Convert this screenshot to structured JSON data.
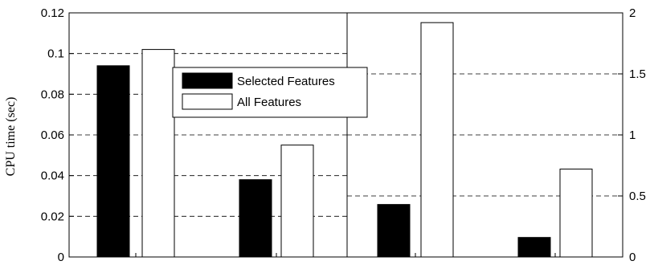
{
  "chart_data": [
    {
      "type": "bar",
      "ylabel": "CPU time (sec)",
      "ylim": [
        0,
        0.12
      ],
      "yticks": [
        "0",
        "0.02",
        "0.04",
        "0.06",
        "0.08",
        "0.1",
        "0.12"
      ],
      "grid": "dashed horizontal",
      "y_axis_side": "left",
      "categories": [
        "",
        ""
      ],
      "series": [
        {
          "name": "Selected Features",
          "color": "#000000",
          "values": [
            0.094,
            0.038
          ]
        },
        {
          "name": "All Features",
          "color": "#ffffff",
          "values": [
            0.102,
            0.055
          ]
        }
      ],
      "legend": "top-right"
    },
    {
      "type": "bar",
      "ylim": [
        0,
        2
      ],
      "yticks": [
        "0",
        "0.5",
        "1",
        "1.5",
        "2"
      ],
      "grid": "dashed horizontal",
      "y_axis_side": "right",
      "categories": [
        "",
        ""
      ],
      "series": [
        {
          "name": "Selected Features",
          "color": "#000000",
          "values": [
            0.43,
            0.16
          ]
        },
        {
          "name": "All Features",
          "color": "#ffffff",
          "values": [
            1.92,
            0.72
          ]
        }
      ]
    }
  ]
}
